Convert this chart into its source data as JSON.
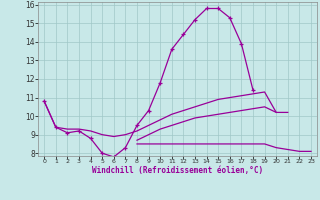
{
  "xlabel": "Windchill (Refroidissement éolien,°C)",
  "x_values": [
    0,
    1,
    2,
    3,
    4,
    5,
    6,
    7,
    8,
    9,
    10,
    11,
    12,
    13,
    14,
    15,
    16,
    17,
    18,
    19,
    20,
    21,
    22,
    23
  ],
  "line_main": [
    10.8,
    9.4,
    9.1,
    9.2,
    8.8,
    8.0,
    7.8,
    8.3,
    9.5,
    10.3,
    11.8,
    13.6,
    14.4,
    15.2,
    15.8,
    15.8,
    15.3,
    13.9,
    11.4,
    null,
    null,
    null,
    null,
    null
  ],
  "line_flat": [
    null,
    null,
    null,
    null,
    null,
    null,
    null,
    null,
    8.5,
    8.5,
    8.5,
    8.5,
    8.5,
    8.5,
    8.5,
    8.5,
    8.5,
    8.5,
    8.5,
    8.5,
    8.3,
    8.2,
    8.1,
    8.1
  ],
  "line_upper": [
    10.8,
    9.4,
    9.3,
    9.3,
    9.2,
    9.0,
    8.9,
    9.0,
    9.2,
    9.5,
    9.8,
    10.1,
    10.3,
    10.5,
    10.7,
    10.9,
    11.0,
    11.1,
    11.2,
    11.3,
    10.2,
    10.2,
    null,
    null
  ],
  "line_lower": [
    null,
    null,
    null,
    null,
    null,
    null,
    null,
    null,
    8.7,
    9.0,
    9.3,
    9.5,
    9.7,
    9.9,
    10.0,
    10.1,
    10.2,
    10.3,
    10.4,
    10.5,
    10.2,
    null,
    null,
    null
  ],
  "line_color": "#990099",
  "bg_color": "#c8e8e8",
  "grid_color": "#a0c8c8",
  "ylim": [
    8,
    16
  ],
  "xlim": [
    -0.5,
    23.5
  ],
  "yticks": [
    8,
    9,
    10,
    11,
    12,
    13,
    14,
    15,
    16
  ],
  "xticks": [
    0,
    1,
    2,
    3,
    4,
    5,
    6,
    7,
    8,
    9,
    10,
    11,
    12,
    13,
    14,
    15,
    16,
    17,
    18,
    19,
    20,
    21,
    22,
    23
  ]
}
